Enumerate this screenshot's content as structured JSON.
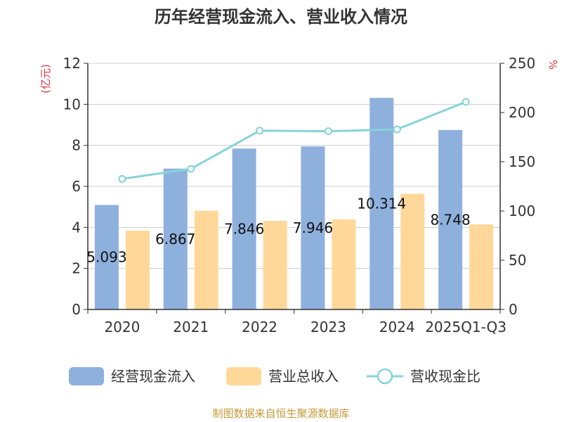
{
  "title": "历年经营现金流入、营业收入情况",
  "source": "制图数据来自恒生聚源数据库",
  "colors": {
    "cash_inflow": "#8eb0dd",
    "revenue": "#ffd899",
    "ratio": "#86d4d8"
  },
  "chart_data": {
    "type": "bar",
    "categories": [
      "2020",
      "2021",
      "2022",
      "2023",
      "2024",
      "2025Q1-Q3"
    ],
    "y_left": {
      "label": "(亿元)",
      "range": [
        0,
        12
      ],
      "ticks": [
        0,
        2,
        4,
        6,
        8,
        10,
        12
      ]
    },
    "y_right": {
      "label": "%",
      "range": [
        0,
        250
      ],
      "ticks": [
        0,
        50,
        100,
        150,
        200,
        250
      ]
    },
    "grid": true,
    "legend_position": "bottom",
    "series": [
      {
        "name": "经营现金流入",
        "type": "bar",
        "axis": "left",
        "values": [
          5.093,
          6.867,
          7.846,
          7.946,
          10.314,
          8.748
        ],
        "labels": [
          "5.093",
          "6.867",
          "7.846",
          "7.946",
          "10.314",
          "8.748"
        ]
      },
      {
        "name": "营业总收入",
        "type": "bar",
        "axis": "left",
        "values": [
          3.84,
          4.81,
          4.32,
          4.39,
          5.64,
          4.15
        ]
      },
      {
        "name": "营收现金比",
        "type": "line",
        "axis": "right",
        "values": [
          132.6,
          142.8,
          181.6,
          181.0,
          182.9,
          210.8
        ]
      }
    ]
  }
}
